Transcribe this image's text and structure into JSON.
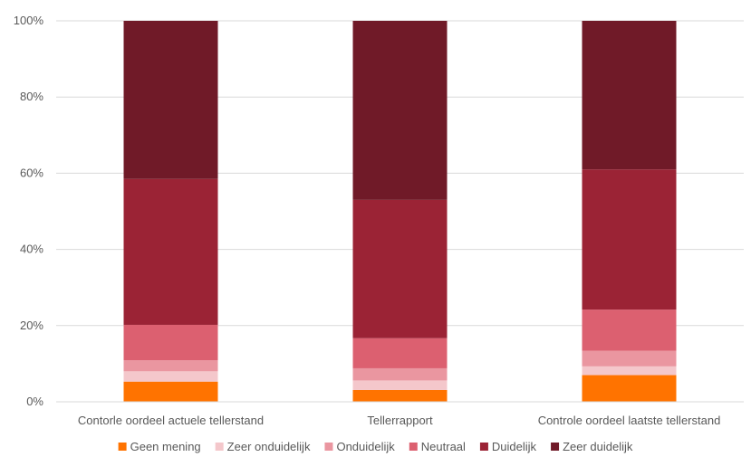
{
  "chart_data": {
    "type": "bar",
    "stacked": true,
    "percent": true,
    "categories": [
      "Contorle oordeel actuele tellerstand",
      "Tellerrapport",
      "Controle oordeel laatste tellerstand"
    ],
    "series": [
      {
        "name": "Geen mening",
        "color": "#FF7300",
        "values": [
          5.3,
          3.1,
          7.0
        ]
      },
      {
        "name": "Zeer onduidelijk",
        "color": "#F4C7CB",
        "values": [
          2.7,
          2.5,
          2.3
        ]
      },
      {
        "name": "Onduidelijk",
        "color": "#EA96A0",
        "values": [
          2.9,
          3.2,
          4.1
        ]
      },
      {
        "name": "Neutraal",
        "color": "#DC6070",
        "values": [
          9.3,
          7.9,
          10.8
        ]
      },
      {
        "name": "Duidelijk",
        "color": "#9B2335",
        "values": [
          38.3,
          36.3,
          36.8
        ]
      },
      {
        "name": "Zeer duidelijk",
        "color": "#701A28",
        "values": [
          41.5,
          47.0,
          39.0
        ]
      }
    ],
    "y_ticks": [
      "0%",
      "20%",
      "40%",
      "60%",
      "80%",
      "100%"
    ],
    "ylim": [
      0,
      100
    ],
    "grid": true,
    "legend_position": "bottom"
  }
}
